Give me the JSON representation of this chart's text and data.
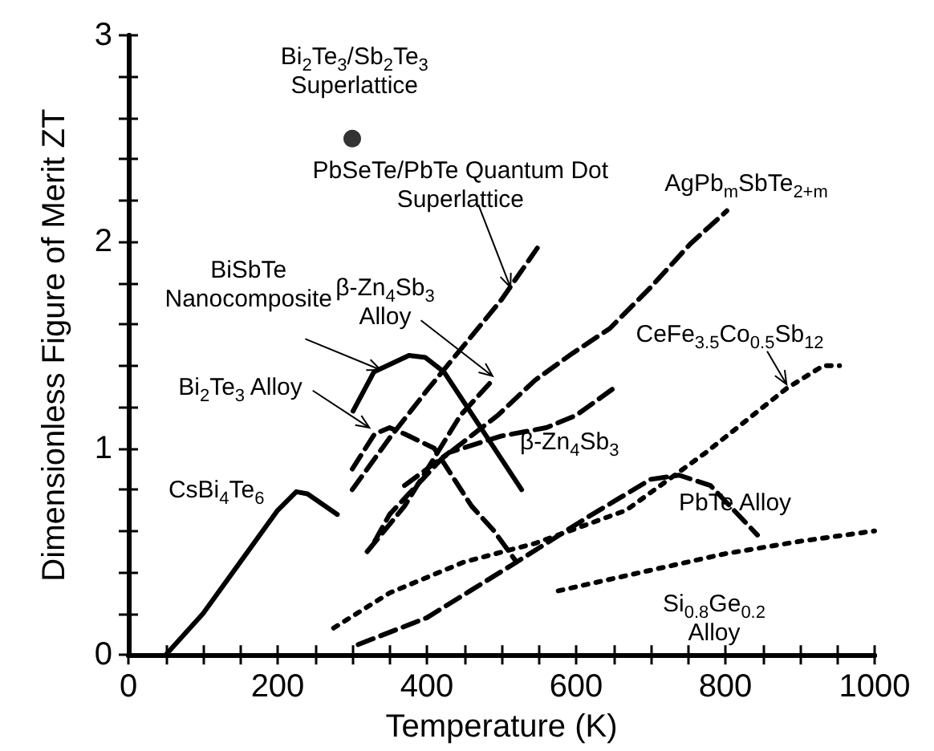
{
  "chart_data": {
    "type": "line",
    "xlabel": "Temperature (K)",
    "ylabel": "Dimensionless Figure of Merit ZT",
    "xlim": [
      0,
      1000
    ],
    "ylim": [
      0,
      3
    ],
    "xticks": [
      0,
      {
        "value": 50,
        "label": null
      },
      {
        "value": 100,
        "label": null
      },
      {
        "value": 150,
        "label": null
      },
      200,
      {
        "value": 250,
        "label": null
      },
      {
        "value": 300,
        "label": null
      },
      {
        "value": 350,
        "label": null
      },
      400,
      {
        "value": 450,
        "label": null
      },
      {
        "value": 500,
        "label": null
      },
      {
        "value": 550,
        "label": null
      },
      600,
      {
        "value": 650,
        "label": null
      },
      {
        "value": 700,
        "label": null
      },
      {
        "value": 750,
        "label": null
      },
      800,
      {
        "value": 850,
        "label": null
      },
      {
        "value": 900,
        "label": null
      },
      {
        "value": 950,
        "label": null
      },
      1000
    ],
    "yticks": [
      0,
      {
        "value": 0.2,
        "label": null
      },
      {
        "value": 0.4,
        "label": null
      },
      {
        "value": 0.6,
        "label": null
      },
      {
        "value": 0.8,
        "label": null
      },
      1,
      {
        "value": 1.2,
        "label": null
      },
      {
        "value": 1.4,
        "label": null
      },
      {
        "value": 1.6,
        "label": null
      },
      {
        "value": 1.8,
        "label": null
      },
      2,
      {
        "value": 2.2,
        "label": null
      },
      {
        "value": 2.4,
        "label": null
      },
      {
        "value": 2.6,
        "label": null
      },
      {
        "value": 2.8,
        "label": null
      },
      3
    ],
    "grid": false,
    "legend": false,
    "marker": "none",
    "series": [
      {
        "name": "CsBi$_{4}$Te$_{6}$",
        "color": "#000000",
        "line_style": "solid",
        "x": [
          50,
          100,
          150,
          200,
          225,
          240,
          280
        ],
        "values": [
          0,
          0.2,
          0.45,
          0.7,
          0.79,
          0.78,
          0.68
        ]
      },
      {
        "name": "BiSbTe Nanocomposite",
        "color": "#000000",
        "line_style": "solid",
        "x": [
          301,
          329,
          376,
          398,
          423,
          527
        ],
        "values": [
          1.18,
          1.37,
          1.45,
          1.44,
          1.37,
          0.8
        ]
      },
      {
        "name": "Bi$_{2}$Te$_{3}$ Alloy",
        "color": "#000000",
        "line_style": "dashed",
        "x": [
          300,
          330,
          350,
          370,
          410,
          460,
          490,
          520
        ],
        "values": [
          0.9,
          1.07,
          1.1,
          1.07,
          1.0,
          0.72,
          0.6,
          0.45
        ]
      },
      {
        "name": "PbSeTe/PbTe Quantum Dot Superlattice",
        "color": "#000000",
        "line_style": "dashed",
        "x": [
          300,
          350,
          400,
          450,
          500,
          548
        ],
        "values": [
          0.8,
          1.05,
          1.28,
          1.5,
          1.72,
          1.97
        ]
      },
      {
        "name": "β-Zn$_{4}$Sb$_{3}$ Alloy",
        "color": "#000000",
        "line_style": "dashed",
        "x": [
          320,
          370,
          445,
          488
        ],
        "values": [
          0.5,
          0.72,
          1.16,
          1.33
        ]
      },
      {
        "name": "AgPb$_{m}$SbTe$_{2+m}$",
        "color": "#000000",
        "line_style": "dashed",
        "x": [
          330,
          350,
          420,
          495,
          545,
          595,
          645,
          700,
          753,
          802
        ],
        "values": [
          0.55,
          0.68,
          0.95,
          1.16,
          1.33,
          1.46,
          1.58,
          1.78,
          1.99,
          2.15
        ]
      },
      {
        "name": "β-Zn$_{4}$Sb$_{3}$",
        "color": "#000000",
        "line_style": "dashed",
        "x": [
          370,
          430,
          500,
          560,
          600,
          650
        ],
        "values": [
          0.82,
          0.98,
          1.06,
          1.1,
          1.16,
          1.29
        ]
      },
      {
        "name": "CeFe$_{3.5}$Co$_{0.5}$Sb$_{12}$",
        "color": "#000000",
        "line_style": "dotted",
        "x": [
          275,
          350,
          450,
          545,
          667,
          774,
          882,
          931,
          953
        ],
        "values": [
          0.13,
          0.3,
          0.45,
          0.54,
          0.7,
          0.98,
          1.29,
          1.4,
          1.4
        ]
      },
      {
        "name": "PbTe Alloy",
        "color": "#000000",
        "line_style": "dashed",
        "x": [
          308,
          400,
          458,
          516,
          617,
          700,
          738,
          780,
          843
        ],
        "values": [
          0.05,
          0.18,
          0.31,
          0.44,
          0.67,
          0.85,
          0.87,
          0.82,
          0.58
        ]
      },
      {
        "name": "Si$_{0.8}$Ge$_{0.2}$ Alloy",
        "color": "#000000",
        "line_style": "dotted",
        "x": [
          576,
          700,
          800,
          900,
          1000
        ],
        "values": [
          0.31,
          0.41,
          0.49,
          0.55,
          0.6
        ]
      },
      {
        "name": "Bi$_{2}$Te$_{3}$/Sb$_{2}$Te$_{3}$ Superlattice",
        "type": "scatter",
        "marker": "circle",
        "color": "#000000",
        "x": [
          300
        ],
        "values": [
          2.5
        ]
      }
    ]
  }
}
